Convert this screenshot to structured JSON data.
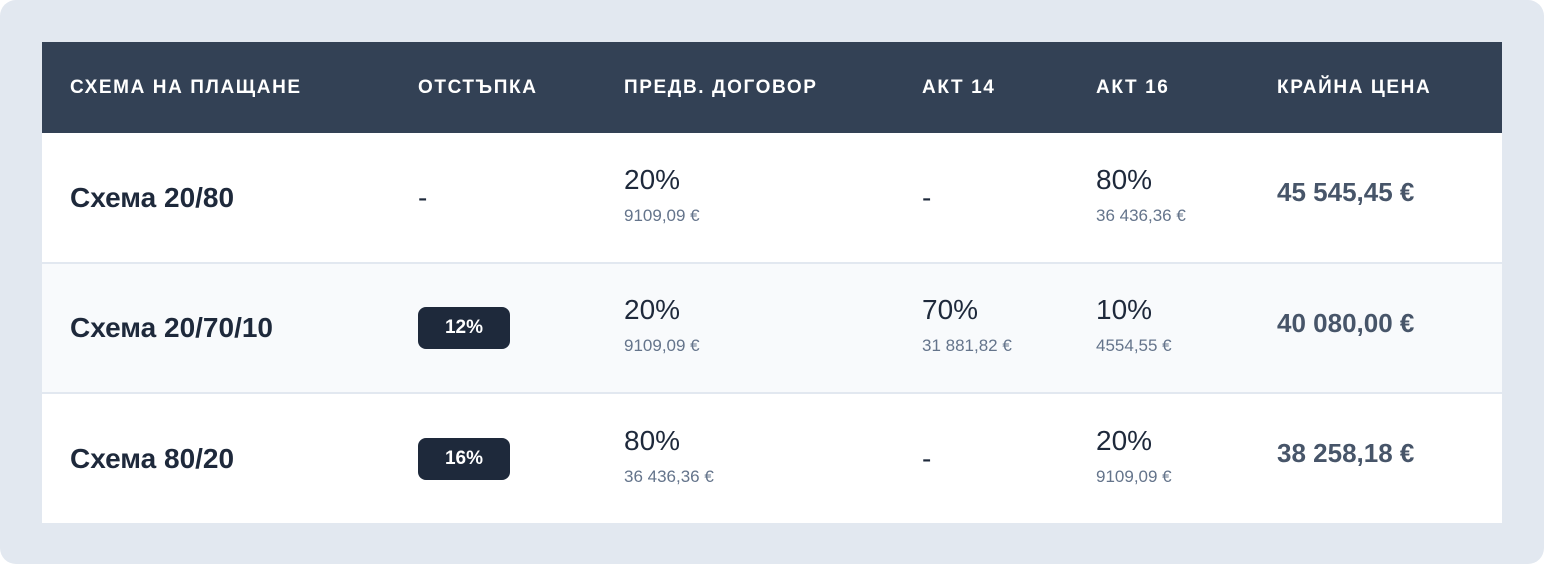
{
  "headers": [
    "СХЕМА НА ПЛАЩАНЕ",
    "ОТСТЪПКА",
    "ПРЕДВ. ДОГОВОР",
    "АКТ 14",
    "АКТ 16",
    "КРАЙНА ЦЕНА"
  ],
  "rows": [
    {
      "name": "Схема 20/80",
      "discount": "-",
      "pre": {
        "pct": "20%",
        "amt": "9109,09 €"
      },
      "act14": {
        "dash": "-"
      },
      "act16": {
        "pct": "80%",
        "amt": "36 436,36 €"
      },
      "price": "45 545,45 €"
    },
    {
      "name": "Схема 20/70/10",
      "discount": "12%",
      "pre": {
        "pct": "20%",
        "amt": "9109,09 €"
      },
      "act14": {
        "pct": "70%",
        "amt": "31 881,82 €"
      },
      "act16": {
        "pct": "10%",
        "amt": "4554,55 €"
      },
      "price": "40 080,00 €"
    },
    {
      "name": "Схема 80/20",
      "discount": "16%",
      "pre": {
        "pct": "80%",
        "amt": "36 436,36 €"
      },
      "act14": {
        "dash": "-"
      },
      "act16": {
        "pct": "20%",
        "amt": "9109,09 €"
      },
      "price": "38 258,18 €"
    }
  ],
  "colors": {
    "header_bg": "#334155",
    "badge_bg": "#1e293b",
    "page_bg": "#e2e8f0"
  }
}
